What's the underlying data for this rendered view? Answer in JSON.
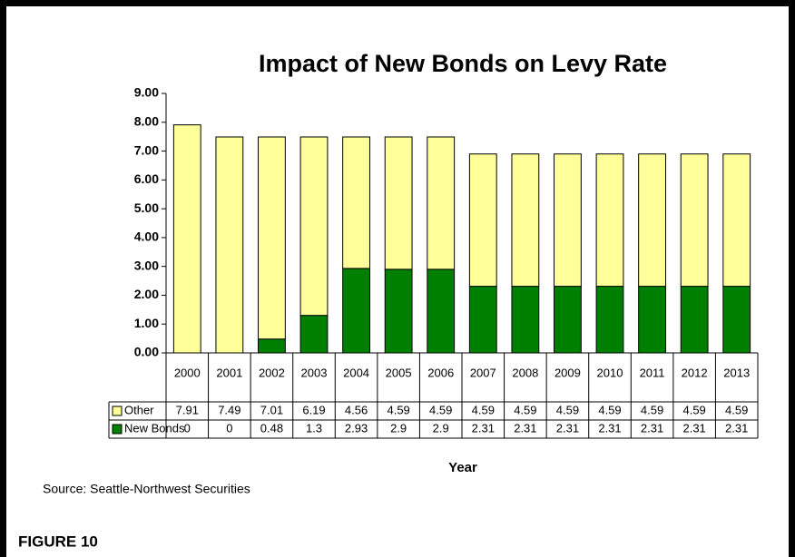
{
  "chart_data": {
    "type": "bar",
    "stacked": true,
    "title": "Impact of New Bonds on Levy Rate",
    "xlabel": "Year",
    "source": "Source: Seattle-Northwest Securities",
    "figure_label": "FIGURE 10",
    "categories": [
      "2000",
      "2001",
      "2002",
      "2003",
      "2004",
      "2005",
      "2006",
      "2007",
      "2008",
      "2009",
      "2010",
      "2011",
      "2012",
      "2013"
    ],
    "series": [
      {
        "name": "Other",
        "color": "#ffff99",
        "values": [
          7.91,
          7.49,
          7.01,
          6.19,
          4.56,
          4.59,
          4.59,
          4.59,
          4.59,
          4.59,
          4.59,
          4.59,
          4.59,
          4.59
        ]
      },
      {
        "name": "New Bonds",
        "color": "#008000",
        "values": [
          0,
          0,
          0.48,
          1.3,
          2.93,
          2.9,
          2.9,
          2.31,
          2.31,
          2.31,
          2.31,
          2.31,
          2.31,
          2.31
        ]
      }
    ],
    "ylim": [
      0,
      9
    ],
    "yticks": [
      {
        "value": 0,
        "label": "0.00"
      },
      {
        "value": 1,
        "label": "1.00"
      },
      {
        "value": 2,
        "label": "2.00"
      },
      {
        "value": 3,
        "label": "3.00"
      },
      {
        "value": 4,
        "label": "4.00"
      },
      {
        "value": 5,
        "label": "5.00"
      },
      {
        "value": 6,
        "label": "6.00"
      },
      {
        "value": 7,
        "label": "7.00"
      },
      {
        "value": 8,
        "label": "8.00"
      },
      {
        "value": 9,
        "label": "9.00"
      }
    ]
  }
}
